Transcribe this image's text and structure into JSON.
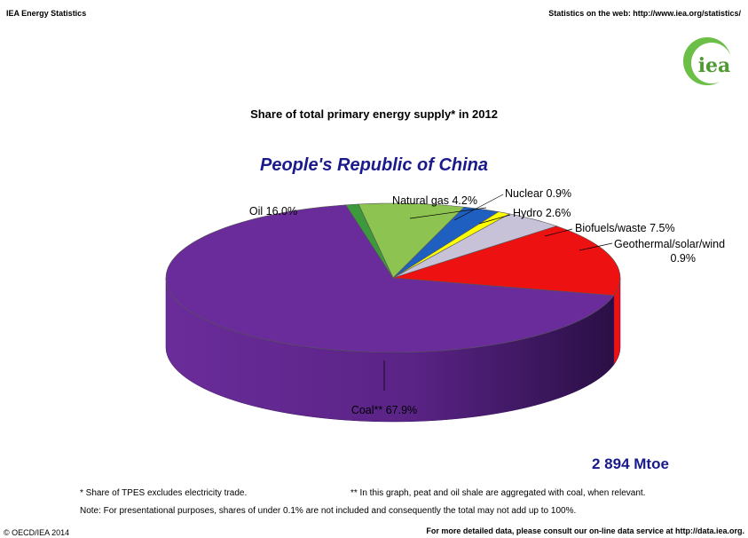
{
  "header": {
    "left": "IEA Energy Statistics",
    "right": "Statistics on the web: http://www.iea.org/statistics/"
  },
  "logo": {
    "text": "iea"
  },
  "country": "People's Republic of China",
  "total": "2 894 Mtoe",
  "footnotes": {
    "tpes": "* Share of TPES excludes electricity trade.",
    "coal": "** In this graph, peat and oil shale are aggregated with coal, when relevant.",
    "note": "Note: For presentational purposes, shares of under 0.1% are not included and consequently the total may not add up to 100%."
  },
  "footer": {
    "copyright": "© OECD/IEA 2014",
    "more_data": "For more detailed data, please consult our on-line data service at http://data.iea.org."
  },
  "colors": {
    "coal": "#6a2c9a",
    "oil": "#ee1111",
    "natural_gas": "#c8c2d8",
    "nuclear": "#ffff00",
    "hydro": "#1f5fbf",
    "biofuels": "#8dc350",
    "geothermal": "#3c9a3c",
    "title_blue": "#1a1a8c"
  },
  "chart_data": {
    "type": "pie",
    "title": "Share of total primary energy supply* in 2012",
    "unit": "%",
    "slices": [
      {
        "name": "Coal**",
        "value": 67.9,
        "label": "Coal** 67.9%"
      },
      {
        "name": "Oil",
        "value": 16.0,
        "label": "Oil 16.0%"
      },
      {
        "name": "Natural gas",
        "value": 4.2,
        "label": "Natural gas 4.2%"
      },
      {
        "name": "Nuclear",
        "value": 0.9,
        "label": "Nuclear 0.9%"
      },
      {
        "name": "Hydro",
        "value": 2.6,
        "label": "Hydro 2.6%"
      },
      {
        "name": "Biofuels/waste",
        "value": 7.5,
        "label": "Biofuels/waste 7.5%"
      },
      {
        "name": "Geothermal/solar/wind",
        "value": 0.9,
        "label_lines": [
          "Geothermal/solar/wind",
          "0.9%"
        ]
      }
    ]
  }
}
